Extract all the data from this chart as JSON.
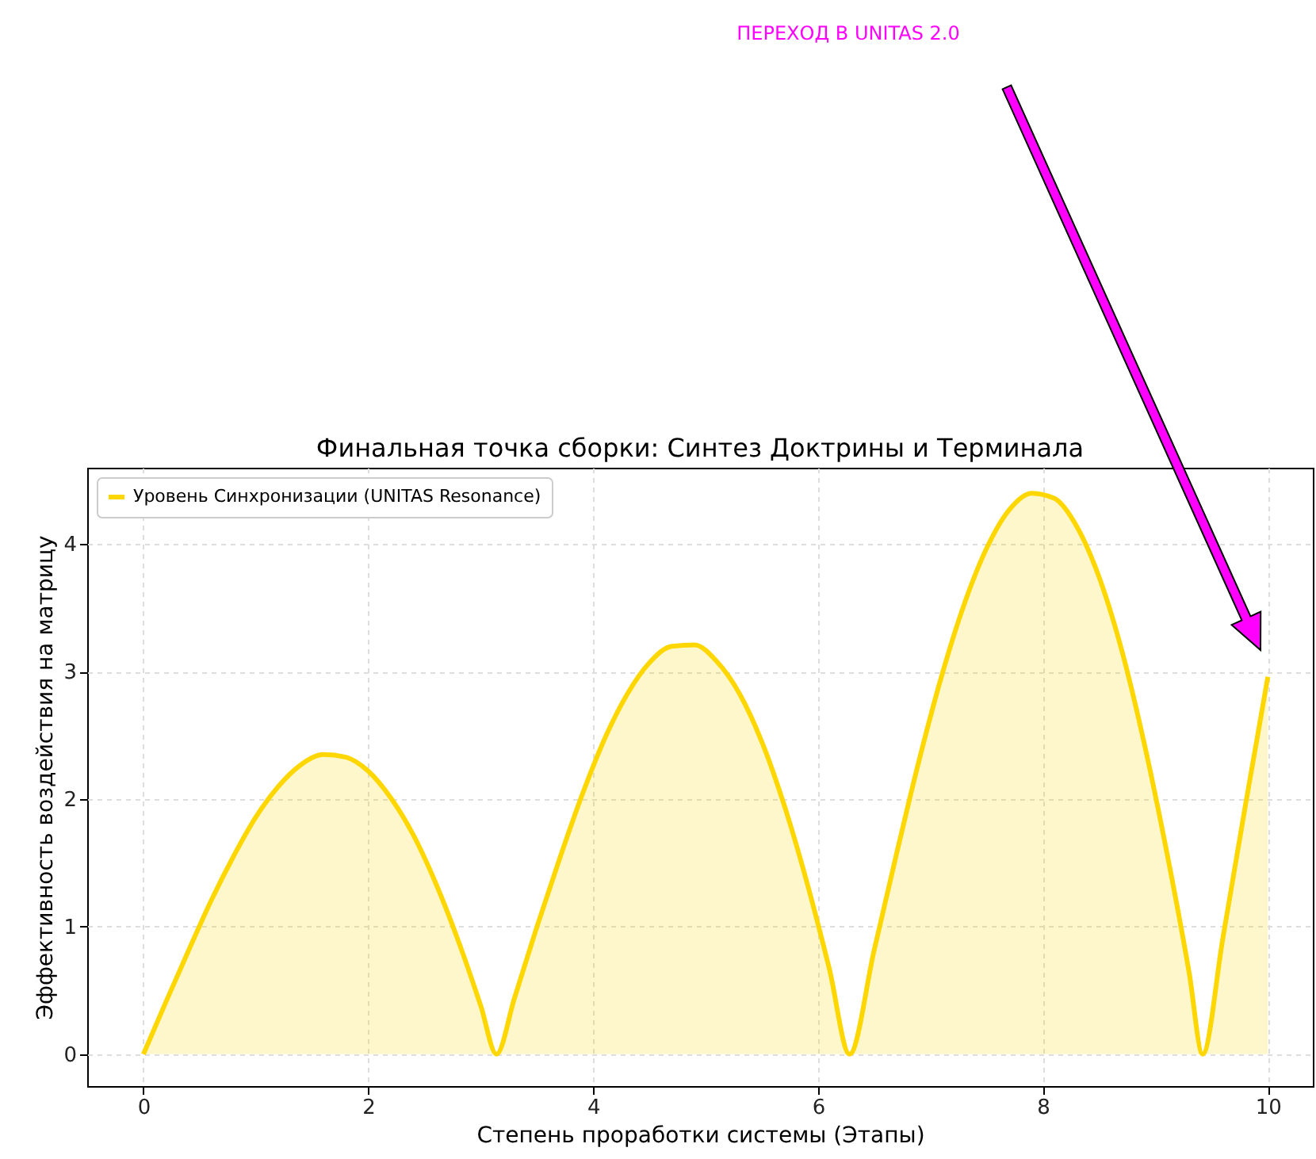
{
  "chart_data": {
    "type": "area",
    "title": "Финальная точка сборки: Синтез Доктрины и Терминала",
    "xlabel": "Степень проработки системы (Этапы)",
    "ylabel": "Эффективность воздействия на матрицу",
    "x": [
      0,
      0.2,
      0.4,
      0.6,
      0.8,
      1.0,
      1.2,
      1.4,
      1.6,
      1.8,
      2.0,
      2.2,
      2.4,
      2.6,
      2.8,
      3.0,
      3.14,
      3.3,
      3.5,
      3.7,
      3.9,
      4.1,
      4.3,
      4.5,
      4.7,
      4.9,
      5.1,
      5.3,
      5.5,
      5.7,
      5.9,
      6.1,
      6.28,
      6.5,
      6.7,
      6.9,
      7.1,
      7.3,
      7.5,
      7.7,
      7.9,
      8.1,
      8.3,
      8.5,
      8.7,
      8.9,
      9.1,
      9.3,
      9.42,
      9.6,
      9.8,
      10
    ],
    "series": [
      {
        "name": "Уровень Синхронизации (UNITAS Resonance)",
        "color": "#ffd700",
        "values": [
          0,
          0.41,
          0.81,
          1.2,
          1.55,
          1.86,
          2.1,
          2.27,
          2.35,
          2.33,
          2.22,
          2.01,
          1.72,
          1.34,
          0.89,
          0.38,
          0,
          0.44,
          1.0,
          1.53,
          2.03,
          2.47,
          2.82,
          3.07,
          3.2,
          3.21,
          3.08,
          2.83,
          2.45,
          1.95,
          1.35,
          0.67,
          0,
          0.82,
          1.58,
          2.31,
          2.97,
          3.53,
          3.97,
          4.27,
          4.4,
          4.36,
          4.14,
          3.74,
          3.17,
          2.44,
          1.59,
          0.64,
          0,
          0.91,
          1.95,
          2.96
        ]
      }
    ],
    "xlim": [
      -0.5,
      10.4
    ],
    "xticks": [
      0,
      2,
      4,
      6,
      8,
      10
    ],
    "ylim": [
      -0.25,
      4.6
    ],
    "yticks": [
      0,
      1,
      2,
      3,
      4
    ],
    "grid": true,
    "legend": "top left",
    "annotations": [
      "ПЕРЕХОД В UNITAS 2.0"
    ]
  }
}
